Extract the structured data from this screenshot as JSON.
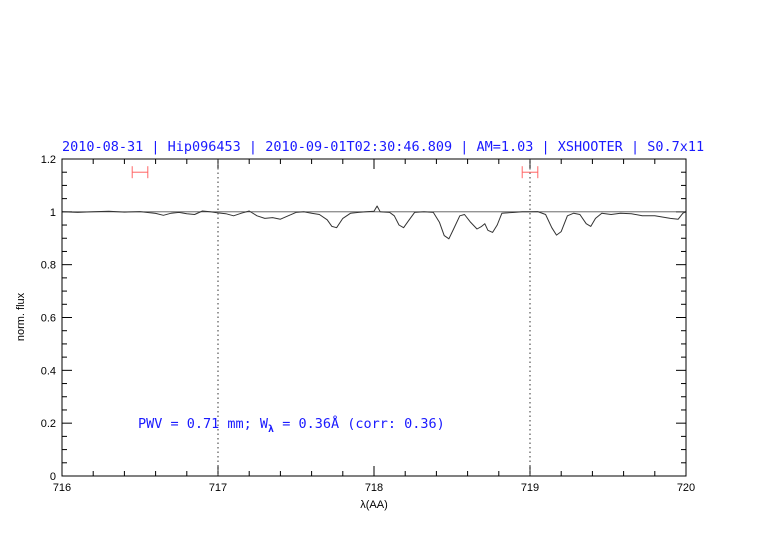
{
  "chart_data": {
    "type": "line",
    "title": "2010-08-31 | Hip096453 | 2010-09-01T02:30:46.809 | AM=1.03 | XSHOOTER | S0.7x11",
    "xlabel": "λ(AA)",
    "ylabel": "norm. flux",
    "xlim": [
      716,
      720
    ],
    "ylim": [
      0,
      1.2
    ],
    "xticks": [
      716,
      717,
      718,
      719,
      720
    ],
    "yticks": [
      0,
      0.2,
      0.4,
      0.6,
      0.8,
      1,
      1.2
    ],
    "xtick_labels": [
      "716",
      "717",
      "718",
      "719",
      "720"
    ],
    "ytick_labels": [
      "0",
      "0.2",
      "0.4",
      "0.6",
      "0.8",
      "1",
      "1.2"
    ],
    "x_minor_step": 0.2,
    "y_minor_step": 0.05,
    "grid": false,
    "vlines_dotted": [
      717,
      719
    ],
    "reference_line": {
      "y": 1,
      "color": "#ff6666"
    },
    "error_bars": [
      {
        "x": [
          716.45,
          716.55
        ],
        "y": 1.15
      },
      {
        "x": [
          718.95,
          719.05
        ],
        "y": 1.15
      }
    ],
    "annotation": {
      "pre": "PWV = 0.71 mm; W",
      "sub": "λ",
      "post": " = 0.36Å (corr: 0.36)"
    },
    "colors": {
      "title": "#1a1aff",
      "spectrum": "#333333",
      "reference": "#ff6666",
      "error_bar": "#ff6666"
    },
    "series": [
      {
        "x": [
          716.0,
          716.1,
          716.2,
          716.3,
          716.4,
          716.5,
          716.6,
          716.65,
          716.7,
          716.75,
          716.8,
          716.85,
          716.9,
          716.95,
          717.0,
          717.05,
          717.1,
          717.15,
          717.2,
          717.25,
          717.3,
          717.35,
          717.4,
          717.45,
          717.5,
          717.55,
          717.6,
          717.65,
          717.7,
          717.73,
          717.76,
          717.8,
          717.85,
          717.9,
          717.95,
          718.0,
          718.02,
          718.04,
          718.1,
          718.13,
          718.16,
          718.19,
          718.22,
          718.26,
          718.32,
          718.38,
          718.42,
          718.45,
          718.48,
          718.51,
          718.55,
          718.58,
          718.62,
          718.66,
          718.69,
          718.71,
          718.73,
          718.76,
          718.79,
          718.82,
          718.9,
          718.95,
          719.0,
          719.05,
          719.1,
          719.14,
          719.17,
          719.2,
          719.24,
          719.28,
          719.32,
          719.36,
          719.39,
          719.42,
          719.46,
          719.52,
          719.58,
          719.65,
          719.72,
          719.8,
          719.9,
          719.95,
          719.98,
          720.0
        ],
        "y": [
          1.0,
          0.998,
          1.0,
          1.002,
          0.999,
          1.001,
          0.994,
          0.987,
          0.995,
          0.998,
          0.993,
          0.99,
          1.003,
          1.0,
          0.996,
          0.993,
          0.985,
          0.995,
          1.003,
          0.985,
          0.975,
          0.978,
          0.972,
          0.985,
          0.998,
          1.0,
          0.995,
          0.99,
          0.97,
          0.945,
          0.94,
          0.975,
          0.995,
          0.998,
          1.0,
          1.002,
          1.022,
          1.0,
          0.998,
          0.985,
          0.95,
          0.94,
          0.965,
          0.998,
          1.0,
          0.998,
          0.96,
          0.91,
          0.898,
          0.935,
          0.985,
          0.99,
          0.96,
          0.935,
          0.945,
          0.955,
          0.93,
          0.922,
          0.95,
          0.995,
          0.998,
          1.0,
          1.0,
          1.001,
          0.99,
          0.94,
          0.912,
          0.925,
          0.985,
          0.995,
          0.99,
          0.955,
          0.945,
          0.975,
          0.995,
          0.99,
          0.995,
          0.993,
          0.985,
          0.985,
          0.975,
          0.972,
          0.995,
          1.0
        ]
      }
    ]
  }
}
